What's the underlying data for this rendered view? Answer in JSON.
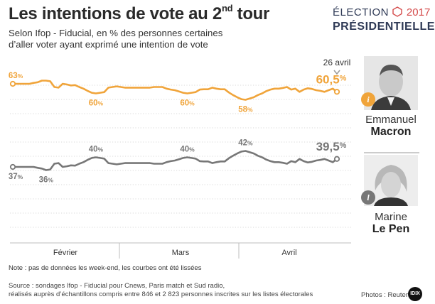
{
  "header": {
    "title_main": "Les intentions de vote au 2",
    "title_sup": "nd",
    "title_end": " tour",
    "subtitle": "Selon Ifop - Fiducial, en % des personnes certaines d’aller voter ayant exprimé une intention de vote"
  },
  "logo": {
    "election": "ÉLECTION",
    "year": "2017",
    "presidential": "PRÉSIDENTIELLE",
    "colors": {
      "navy": "#2f3a56",
      "red": "#d44a4a"
    }
  },
  "candidates": [
    {
      "first": "Emmanuel",
      "last": "Macron",
      "badge_letter": "i",
      "color": "#f0a43a",
      "photo_icon": "macron-portrait-icon"
    },
    {
      "first": "Marine",
      "last": "Le Pen",
      "badge_letter": "l",
      "color": "#777777",
      "photo_icon": "le-pen-portrait-icon"
    }
  ],
  "chart_data": {
    "type": "line",
    "title": "Les intentions de vote au 2nd tour",
    "xlabel": "",
    "ylabel": "",
    "unit": "%",
    "x_ticks": [
      "Février",
      "Mars",
      "Avril"
    ],
    "last_date_label": "26 avril",
    "ylim": [
      30,
      70
    ],
    "grid": true,
    "annotations_note": "Note : pas de données les week-end, les courbes ont été lissées",
    "series": [
      {
        "name": "Emmanuel Macron",
        "color": "#f0a43a",
        "values": [
          63,
          63,
          63,
          63,
          63,
          63.3,
          63.5,
          64,
          64,
          63.8,
          62,
          61.8,
          63,
          62.8,
          62.5,
          62.6,
          62,
          61.5,
          60.8,
          60.2,
          60,
          60.2,
          60.4,
          61.8,
          62,
          62.2,
          62,
          61.8,
          61.8,
          61.8,
          61.8,
          61.8,
          61.8,
          61.8,
          62,
          62,
          62,
          61.5,
          61.2,
          61,
          60.6,
          60.2,
          60,
          60.2,
          60.4,
          61.2,
          61.3,
          61.3,
          61.8,
          61.5,
          61.3,
          61.3,
          60.3,
          59.5,
          58.8,
          58.2,
          58,
          58.4,
          58.8,
          59.5,
          60,
          60.7,
          61.2,
          61.5,
          61.5,
          61.7,
          62,
          61.2,
          61.5,
          60.5,
          61.2,
          61.6,
          61.4,
          61,
          60.8,
          60.5,
          61,
          61.5,
          60.5
        ],
        "labels": [
          {
            "index": 0,
            "text": "63",
            "pos": "above"
          },
          {
            "index": 20,
            "text": "60",
            "pos": "below"
          },
          {
            "index": 42,
            "text": "60",
            "pos": "below"
          },
          {
            "index": 56,
            "text": "58",
            "pos": "below"
          },
          {
            "index": 78,
            "text": "60,5",
            "pos": "above",
            "big": true
          }
        ]
      },
      {
        "name": "Marine Le Pen",
        "color": "#777777",
        "values": [
          37,
          37,
          37,
          37,
          37,
          37,
          36.7,
          36.5,
          36,
          36.2,
          38,
          38.2,
          37,
          37.2,
          37.5,
          37.4,
          38,
          38.5,
          39.2,
          39.8,
          40,
          39.8,
          39.6,
          38.2,
          38,
          37.8,
          38,
          38.2,
          38.2,
          38.2,
          38.2,
          38.2,
          38.2,
          38.2,
          38,
          38,
          38,
          38.5,
          38.8,
          39,
          39.4,
          39.8,
          40,
          39.8,
          39.6,
          38.8,
          38.7,
          38.7,
          38.2,
          38.5,
          38.7,
          38.7,
          39.7,
          40.5,
          41.2,
          41.8,
          42,
          41.6,
          41.2,
          40.5,
          40,
          39.3,
          38.8,
          38.5,
          38.5,
          38.3,
          38,
          38.8,
          38.5,
          39.5,
          38.8,
          38.4,
          38.6,
          39,
          39.2,
          39.5,
          39,
          38.5,
          39.5
        ],
        "labels": [
          {
            "index": 0,
            "text": "37",
            "pos": "below"
          },
          {
            "index": 8,
            "text": "36",
            "pos": "below"
          },
          {
            "index": 20,
            "text": "40",
            "pos": "above"
          },
          {
            "index": 42,
            "text": "40",
            "pos": "above"
          },
          {
            "index": 56,
            "text": "42",
            "pos": "above"
          },
          {
            "index": 78,
            "text": "39,5",
            "pos": "above",
            "big": true
          }
        ]
      }
    ]
  },
  "footer": {
    "note": "Note : pas de données les week-end, les courbes ont été lissées",
    "source_line1": "Source : sondages Ifop - Fiducial pour Cnews, Paris match et Sud radio,",
    "source_line2": "réalisés auprès d’échantillons compris entre 846 et 2 823 personnes inscrites sur les listes électorales",
    "photos": "Photos : Reuters",
    "brand": "IDIX"
  }
}
